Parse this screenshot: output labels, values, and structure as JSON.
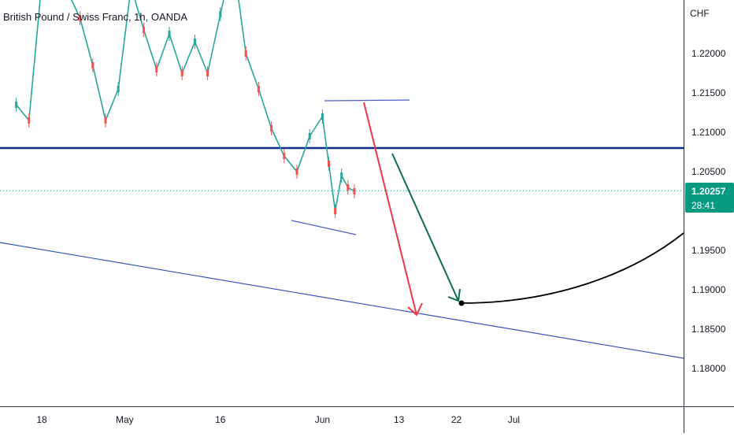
{
  "chart_data": {
    "type": "line",
    "title": "British Pound / Swiss Franc, 1h, OANDA",
    "currency": "CHF",
    "x_ticks": [
      "18",
      "May",
      "16",
      "Jun",
      "13",
      "22",
      "Jul"
    ],
    "y_ticks": [
      "1.22000",
      "1.21500",
      "1.21000",
      "1.20500",
      "1.19500",
      "1.19000",
      "1.18500",
      "1.18000"
    ],
    "ylim": [
      1.175,
      1.23
    ],
    "grid": false,
    "legend": "none",
    "price_label": {
      "value": "1.20257",
      "countdown": "28:41",
      "color": "#089981"
    },
    "series": [
      {
        "x": [
          "Apr 14",
          "Apr 16",
          "Apr 18",
          "Apr 20",
          "Apr 22",
          "Apr 24",
          "Apr 26",
          "Apr 28",
          "Apr 30",
          "May 2",
          "May 4",
          "May 6",
          "May 8",
          "May 10",
          "May 12",
          "May 14",
          "May 16",
          "May 18",
          "May 20",
          "May 22",
          "May 24",
          "May 26",
          "May 28",
          "May 30",
          "Jun 1",
          "Jun 2",
          "Jun 3",
          "Jun 4",
          "Jun 5",
          "Jun 6"
        ],
        "values": [
          1.2135,
          1.2115,
          1.229,
          1.231,
          1.228,
          1.2245,
          1.2185,
          1.2115,
          1.2155,
          1.2285,
          1.223,
          1.218,
          1.2225,
          1.2175,
          1.2215,
          1.2175,
          1.225,
          1.232,
          1.22,
          1.2155,
          1.2105,
          1.207,
          1.205,
          1.2095,
          1.212,
          1.206,
          1.2,
          1.2045,
          1.203,
          1.2025
        ],
        "color": "#26a69a"
      }
    ],
    "annotations": {
      "horizontal_level": 1.208,
      "colors": {
        "level_line": "#0d2a8c",
        "trendline": "#3556b8",
        "range_lines": "#4a5fc9",
        "red_arrow": "#f23645",
        "green_arrow": "#0b6e4f",
        "projection_curve": "#000000"
      }
    }
  }
}
